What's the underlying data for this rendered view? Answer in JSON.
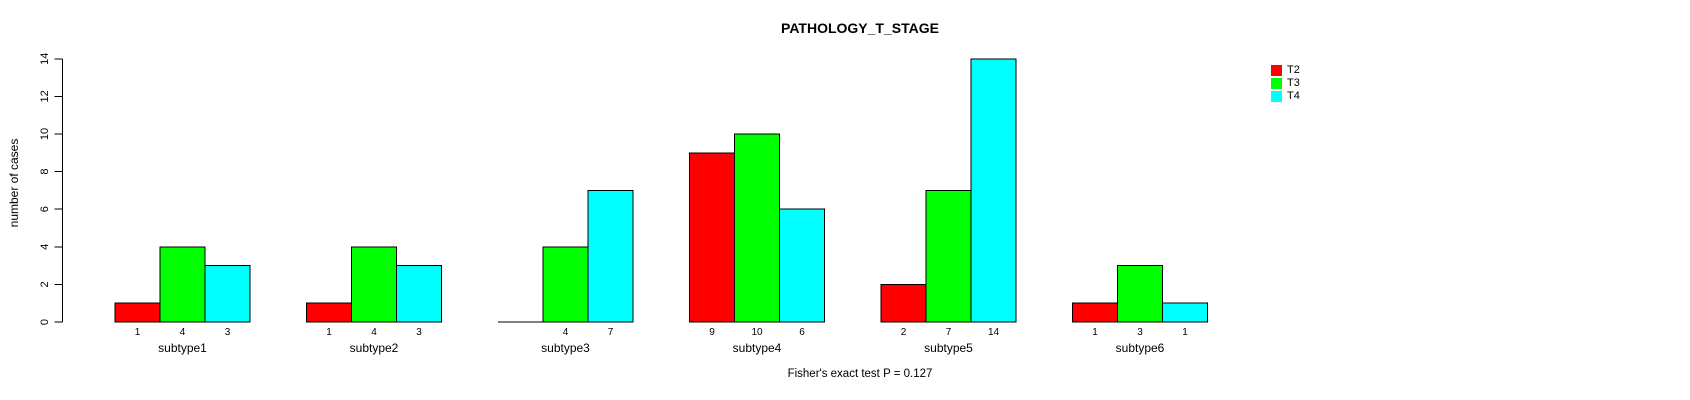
{
  "chart_data": {
    "type": "bar",
    "title": "PATHOLOGY_T_STAGE",
    "xlabel": "",
    "ylabel": "number of cases",
    "categories": [
      "subtype1",
      "subtype2",
      "subtype3",
      "subtype4",
      "subtype5",
      "subtype6"
    ],
    "series": [
      {
        "name": "T2",
        "color": "#ff0000",
        "values": [
          1,
          1,
          0,
          9,
          2,
          1
        ]
      },
      {
        "name": "T3",
        "color": "#00ff00",
        "values": [
          4,
          4,
          4,
          10,
          7,
          3
        ]
      },
      {
        "name": "T4",
        "color": "#00ffff",
        "values": [
          3,
          3,
          7,
          6,
          14,
          1
        ]
      }
    ],
    "ylim": [
      0,
      14
    ],
    "yticks": [
      0,
      2,
      4,
      6,
      8,
      10,
      12,
      14
    ],
    "grid": false,
    "bar_values_shown_below_bars": true,
    "zero_bars_have_no_label": true,
    "legend_position": "top-right",
    "annotation": "Fisher's exact test P = 0.127"
  },
  "colors": {
    "background": "#ffffff",
    "bar_border": "#000000",
    "axis": "#000000",
    "text": "#000000"
  }
}
